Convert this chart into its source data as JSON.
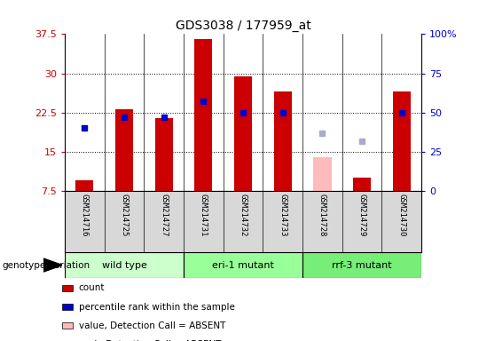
{
  "title": "GDS3038 / 177959_at",
  "samples": [
    "GSM214716",
    "GSM214725",
    "GSM214727",
    "GSM214731",
    "GSM214732",
    "GSM214733",
    "GSM214728",
    "GSM214729",
    "GSM214730"
  ],
  "bar_heights": [
    9.5,
    23.2,
    21.5,
    36.5,
    29.5,
    26.5,
    0,
    10.0,
    26.5
  ],
  "absent_bar_heights": [
    0,
    0,
    0,
    0,
    0,
    0,
    14.0,
    0,
    0
  ],
  "absent_bar_color": "#ffbbbb",
  "rank_pct": [
    40,
    47,
    47,
    57,
    50,
    50,
    0,
    0,
    50
  ],
  "absent_rank_pct": [
    0,
    0,
    0,
    0,
    0,
    0,
    37,
    32,
    0
  ],
  "rank_dot_color": "#0000cc",
  "absent_rank_dot_color": "#aaaacc",
  "ylim_left": [
    7.5,
    37.5
  ],
  "ylim_right": [
    0,
    100
  ],
  "yticks_left": [
    7.5,
    15.0,
    22.5,
    30.0,
    37.5
  ],
  "ytick_labels_left": [
    "7.5",
    "15",
    "22.5",
    "30",
    "37.5"
  ],
  "yticks_right": [
    0,
    25,
    50,
    75,
    100
  ],
  "ytick_labels_right": [
    "0",
    "25",
    "50",
    "75",
    "100%"
  ],
  "groups": [
    {
      "label": "wild type",
      "start": 0,
      "end": 3,
      "color": "#ccffcc"
    },
    {
      "label": "eri-1 mutant",
      "start": 3,
      "end": 6,
      "color": "#99ff99"
    },
    {
      "label": "rrf-3 mutant",
      "start": 6,
      "end": 9,
      "color": "#77ee77"
    }
  ],
  "genotype_label": "genotype/variation",
  "legend_items": [
    {
      "label": "count",
      "color": "#cc0000"
    },
    {
      "label": "percentile rank within the sample",
      "color": "#0000cc"
    },
    {
      "label": "value, Detection Call = ABSENT",
      "color": "#ffbbbb"
    },
    {
      "label": "rank, Detection Call = ABSENT",
      "color": "#aaaacc"
    }
  ],
  "left_axis_color": "#cc0000",
  "right_axis_color": "#0000cc",
  "sample_bg_color": "#d8d8d8",
  "bar_color": "#cc0000",
  "bar_bottom": 7.5,
  "bar_width": 0.45
}
